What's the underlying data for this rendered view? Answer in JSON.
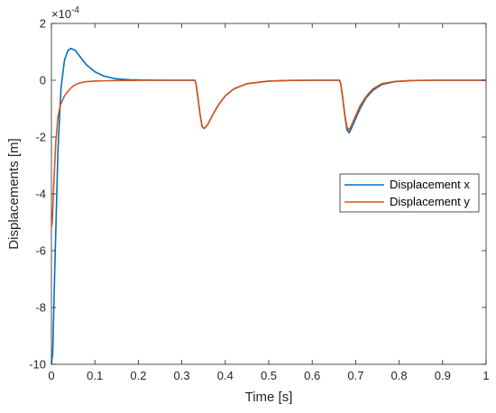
{
  "chart_data": {
    "type": "line",
    "title": "",
    "xlabel": "Time [s]",
    "ylabel": "Displacements [m]",
    "y_exponent_label": "×10",
    "y_exponent_power": "-4",
    "y_scale": 0.0001,
    "xlim": [
      0,
      1
    ],
    "ylim": [
      -10,
      2
    ],
    "x_ticks": [
      0,
      0.1,
      0.2,
      0.3,
      0.4,
      0.5,
      0.6,
      0.7,
      0.8,
      0.9,
      1
    ],
    "x_tick_labels": [
      "0",
      "0.1",
      "0.2",
      "0.3",
      "0.4",
      "0.5",
      "0.6",
      "0.7",
      "0.8",
      "0.9",
      "1"
    ],
    "y_ticks": [
      -10,
      -8,
      -6,
      -4,
      -2,
      0,
      2
    ],
    "y_tick_labels": [
      "-10",
      "-8",
      "-6",
      "-4",
      "-2",
      "0",
      "2"
    ],
    "grid": false,
    "legend_position": "right",
    "series": [
      {
        "name": "Displacement x",
        "color": "#0072BD",
        "x": [
          0,
          0.003,
          0.008,
          0.015,
          0.022,
          0.03,
          0.038,
          0.045,
          0.055,
          0.065,
          0.08,
          0.1,
          0.12,
          0.15,
          0.18,
          0.22,
          0.26,
          0.3,
          0.33,
          0.333,
          0.337,
          0.342,
          0.347,
          0.352,
          0.36,
          0.37,
          0.385,
          0.4,
          0.42,
          0.45,
          0.5,
          0.55,
          0.6,
          0.65,
          0.663,
          0.666,
          0.67,
          0.675,
          0.68,
          0.685,
          0.69,
          0.7,
          0.71,
          0.725,
          0.74,
          0.76,
          0.79,
          0.83,
          0.88,
          0.93,
          1
        ],
        "values": [
          -10,
          -9.6,
          -6.5,
          -2.5,
          -0.3,
          0.7,
          1.05,
          1.12,
          1.05,
          0.85,
          0.55,
          0.3,
          0.15,
          0.05,
          0.02,
          0.005,
          0,
          0,
          0,
          -0.15,
          -0.6,
          -1.2,
          -1.65,
          -1.7,
          -1.55,
          -1.25,
          -0.85,
          -0.55,
          -0.3,
          -0.12,
          -0.03,
          -0.005,
          0,
          0,
          0,
          -0.15,
          -0.6,
          -1.25,
          -1.75,
          -1.85,
          -1.7,
          -1.35,
          -1.0,
          -0.6,
          -0.35,
          -0.15,
          -0.05,
          -0.01,
          0,
          0,
          0
        ]
      },
      {
        "name": "Displacement y",
        "color": "#D95319",
        "x": [
          0,
          0.002,
          0.005,
          0.01,
          0.015,
          0.02,
          0.03,
          0.04,
          0.05,
          0.06,
          0.07,
          0.08,
          0.1,
          0.12,
          0.15,
          0.18,
          0.22,
          0.26,
          0.3,
          0.33,
          0.333,
          0.337,
          0.342,
          0.347,
          0.352,
          0.36,
          0.37,
          0.385,
          0.4,
          0.42,
          0.45,
          0.5,
          0.55,
          0.6,
          0.65,
          0.663,
          0.666,
          0.67,
          0.675,
          0.68,
          0.685,
          0.69,
          0.7,
          0.71,
          0.725,
          0.74,
          0.76,
          0.79,
          0.83,
          0.88,
          0.93,
          1
        ],
        "values": [
          -5.2,
          -5.0,
          -3.8,
          -2.2,
          -1.3,
          -0.9,
          -0.55,
          -0.35,
          -0.2,
          -0.12,
          -0.08,
          -0.05,
          -0.03,
          -0.02,
          -0.01,
          -0.005,
          0,
          0,
          0,
          0,
          -0.15,
          -0.6,
          -1.2,
          -1.65,
          -1.7,
          -1.55,
          -1.25,
          -0.85,
          -0.55,
          -0.3,
          -0.12,
          -0.03,
          -0.005,
          0,
          0,
          0,
          -0.15,
          -0.6,
          -1.2,
          -1.65,
          -1.75,
          -1.6,
          -1.25,
          -0.9,
          -0.55,
          -0.3,
          -0.12,
          -0.04,
          -0.01,
          0,
          0,
          0
        ]
      }
    ]
  }
}
